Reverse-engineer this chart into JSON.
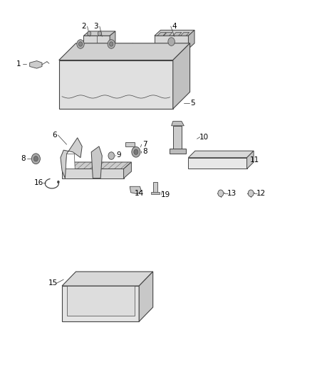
{
  "bg_color": "#ffffff",
  "lc": "#444444",
  "fc_light": "#e8e8e8",
  "fc_mid": "#d0d0d0",
  "fc_dark": "#b8b8b8",
  "fc_white": "#ffffff",
  "label_positions": {
    "1": [
      0.055,
      0.835,
      0.08,
      0.835
    ],
    "2": [
      0.265,
      0.935,
      0.285,
      0.908
    ],
    "3": [
      0.305,
      0.935,
      0.325,
      0.908
    ],
    "4": [
      0.56,
      0.935,
      0.56,
      0.908
    ],
    "5": [
      0.62,
      0.73,
      0.59,
      0.73
    ],
    "6": [
      0.17,
      0.645,
      0.21,
      0.62
    ],
    "7": [
      0.465,
      0.62,
      0.45,
      0.613
    ],
    "8a": [
      0.465,
      0.602,
      0.452,
      0.597
    ],
    "8b": [
      0.07,
      0.582,
      0.098,
      0.582
    ],
    "9": [
      0.38,
      0.592,
      0.368,
      0.59
    ],
    "10": [
      0.655,
      0.64,
      0.633,
      0.635
    ],
    "11": [
      0.82,
      0.578,
      0.79,
      0.578
    ],
    "12": [
      0.84,
      0.49,
      0.82,
      0.49
    ],
    "13": [
      0.745,
      0.49,
      0.722,
      0.49
    ],
    "14": [
      0.445,
      0.49,
      0.44,
      0.5
    ],
    "15": [
      0.165,
      0.25,
      0.2,
      0.26
    ],
    "16": [
      0.12,
      0.518,
      0.142,
      0.518
    ],
    "19": [
      0.53,
      0.486,
      0.52,
      0.496
    ]
  }
}
